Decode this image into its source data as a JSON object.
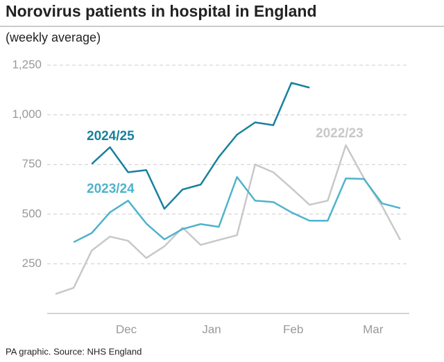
{
  "chart_data": {
    "type": "line",
    "title": "Norovirus patients in hospital in England",
    "subtitle": "(weekly average)",
    "source": "PA graphic. Source: NHS England",
    "x": [
      0,
      1,
      2,
      3,
      4,
      5,
      6,
      7,
      8,
      9,
      10,
      11,
      12,
      13,
      14,
      15,
      16,
      17,
      18,
      19
    ],
    "xlim": [
      0,
      19
    ],
    "xticks": [
      {
        "value": 3.9,
        "label": "Dec"
      },
      {
        "value": 8.6,
        "label": "Jan"
      },
      {
        "value": 13.1,
        "label": "Feb"
      },
      {
        "value": 17.5,
        "label": "Mar"
      }
    ],
    "ylim": [
      0,
      1250
    ],
    "yticks": [
      250,
      500,
      750,
      {
        "value": 1000,
        "label": "1,000"
      },
      {
        "value": 1250,
        "label": "1,250"
      }
    ],
    "grid": true,
    "series": [
      {
        "name": "2022/23",
        "color": "#c8c8c8",
        "values": [
          98,
          129,
          317,
          387,
          366,
          279,
          338,
          432,
          345,
          370,
          394,
          750,
          711,
          631,
          547,
          568,
          847,
          680,
          540,
          370
        ]
      },
      {
        "name": "2023/24",
        "color": "#4fb2cc",
        "values": [
          null,
          359,
          405,
          509,
          568,
          453,
          373,
          425,
          450,
          436,
          687,
          568,
          561,
          509,
          467,
          467,
          680,
          677,
          554,
          530
        ]
      },
      {
        "name": "2024/25",
        "color": "#17809f",
        "values": [
          null,
          null,
          753,
          837,
          711,
          722,
          527,
          624,
          649,
          788,
          900,
          962,
          948,
          1161,
          1137,
          null,
          null,
          null,
          null,
          null
        ]
      }
    ]
  }
}
